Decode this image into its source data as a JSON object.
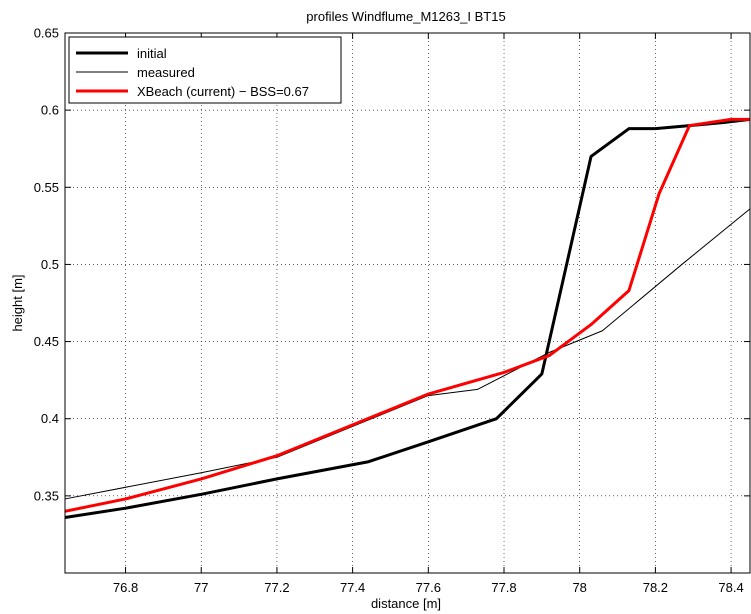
{
  "chart_data": {
    "type": "line",
    "title": "profiles Windflume_M1263_I BT15",
    "xlabel": "distance [m]",
    "ylabel": "height [m]",
    "xlim": [
      76.64,
      78.45
    ],
    "ylim": [
      0.3,
      0.65
    ],
    "xticks": [
      76.8,
      77,
      77.2,
      77.4,
      77.6,
      77.8,
      78,
      78.2,
      78.4
    ],
    "xtick_labels": [
      "76.8",
      "77",
      "77.2",
      "77.4",
      "77.6",
      "77.8",
      "78",
      "78.2",
      "78.4"
    ],
    "yticks": [
      0.35,
      0.4,
      0.45,
      0.5,
      0.55,
      0.6,
      0.65
    ],
    "ytick_labels": [
      "0.35",
      "0.4",
      "0.45",
      "0.5",
      "0.55",
      "0.6",
      "0.65"
    ],
    "grid": true,
    "legend_position": "top-left",
    "series": [
      {
        "name": "initial",
        "color": "#000000",
        "x": [
          76.64,
          76.8,
          77.0,
          77.2,
          77.44,
          77.6,
          77.78,
          77.9,
          78.03,
          78.13,
          78.2,
          78.29,
          78.38,
          78.45
        ],
        "y": [
          0.336,
          0.342,
          0.351,
          0.361,
          0.372,
          0.385,
          0.4,
          0.429,
          0.57,
          0.588,
          0.588,
          0.59,
          0.592,
          0.594
        ]
      },
      {
        "name": "measured",
        "color": "#000000",
        "x": [
          76.64,
          77.0,
          77.2,
          77.4,
          77.6,
          77.73,
          77.92,
          78.06,
          78.27,
          78.45
        ],
        "y": [
          0.348,
          0.365,
          0.375,
          0.395,
          0.415,
          0.419,
          0.443,
          0.457,
          0.5,
          0.536
        ]
      },
      {
        "name": "XBeach (current) − BSS=0.67",
        "color": "#ff0000",
        "x": [
          76.64,
          76.8,
          77.0,
          77.2,
          77.4,
          77.6,
          77.8,
          77.92,
          78.03,
          78.13,
          78.21,
          78.29,
          78.4,
          78.45
        ],
        "y": [
          0.34,
          0.348,
          0.361,
          0.376,
          0.396,
          0.416,
          0.43,
          0.441,
          0.461,
          0.483,
          0.546,
          0.59,
          0.594,
          0.594
        ]
      }
    ]
  }
}
